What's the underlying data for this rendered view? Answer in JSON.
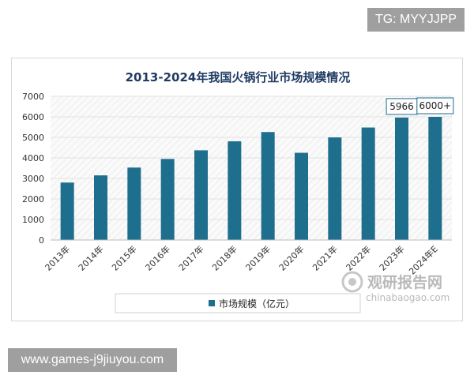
{
  "watermark": {
    "tg_label": "TG: MYYJJPP",
    "url_label": "www.games-j9jiuyou.com",
    "brand_name": "观研报告网",
    "brand_domain": "chinabaogao.com"
  },
  "colors": {
    "bar": "#1e6e8e",
    "title": "#1f3b63",
    "axis_text": "#333333",
    "grid": "#e2e2e2",
    "hatch": "#f1f1f1",
    "badge": "#9f9f9f"
  },
  "chart_data": {
    "type": "bar",
    "title": "2013-2024年我国火锅行业市场规模情况",
    "categories": [
      "2013年",
      "2014年",
      "2015年",
      "2016年",
      "2017年",
      "2018年",
      "2019年",
      "2020年",
      "2021年",
      "2022年",
      "2023年",
      "2024年E"
    ],
    "series": [
      {
        "name": "市场规模（亿元）",
        "values": [
          2800,
          3150,
          3530,
          3950,
          4370,
          4810,
          5260,
          4250,
          5000,
          5480,
          5966,
          6000
        ]
      }
    ],
    "data_labels": [
      {
        "index": 10,
        "text": "5966"
      },
      {
        "index": 11,
        "text": "6000+"
      }
    ],
    "ylim": [
      0,
      7000
    ],
    "yticks": [
      0,
      1000,
      2000,
      3000,
      4000,
      5000,
      6000,
      7000
    ],
    "xlabel": "",
    "ylabel": "",
    "legend": {
      "label": "市场规模（亿元）",
      "position": "bottom"
    }
  }
}
